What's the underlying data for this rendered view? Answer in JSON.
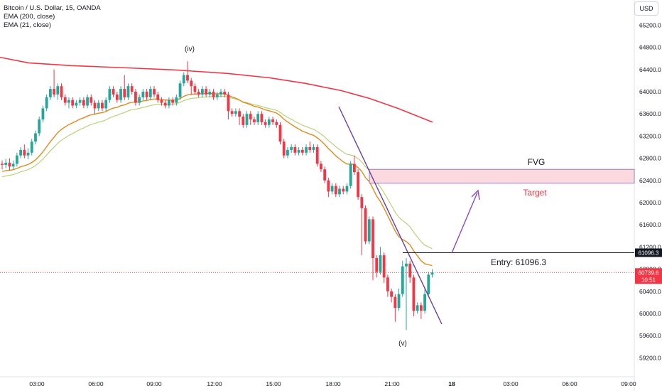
{
  "legend": {
    "symbol": "Bitcoin / U.S. Dollar, 15, OANDA",
    "ema200": "EMA (200, close)",
    "ema21": "EMA (21, close)"
  },
  "currency_button": "USD",
  "colors": {
    "up": "#26a69a",
    "down": "#f23645",
    "ema200": "#f23645",
    "ema21": "#e08a1e",
    "ema_light": "#b9d27a",
    "trendline": "#6a3ea0",
    "fvg_fill": "#fbd9de",
    "fvg_border": "#7d62a8",
    "target_text": "#f23645"
  },
  "annotations": {
    "wave_iv": "(iv)",
    "wave_v": "(v)",
    "fvg": "FVG",
    "target": "Target",
    "entry": "Entry: 61096.3"
  },
  "price_labels": {
    "entry_level": "61096.3",
    "last_price": "60739.6",
    "countdown": "10:51"
  },
  "chart_data": {
    "type": "candlestick",
    "title": "Bitcoin / U.S. Dollar, 15, OANDA",
    "x_ticks": [
      "03:00",
      "06:00",
      "09:00",
      "12:00",
      "15:00",
      "18:00",
      "21:00",
      "18",
      "03:00",
      "06:00",
      "09:00"
    ],
    "y_ticks": [
      59200,
      59600,
      60000,
      60400,
      60800,
      61200,
      61600,
      62000,
      62400,
      62800,
      63200,
      63600,
      64000,
      64400,
      64800,
      65200
    ],
    "ylim": [
      59000,
      65400
    ],
    "entry": 61096.3,
    "last": 60739.6,
    "fvg_zone": [
      62350,
      62600
    ],
    "candles": [
      [
        62700,
        62680,
        62760,
        62600
      ],
      [
        62680,
        62720,
        62790,
        62620
      ],
      [
        62720,
        62650,
        62800,
        62580
      ],
      [
        62650,
        62700,
        62760,
        62600
      ],
      [
        62700,
        62850,
        62900,
        62650
      ],
      [
        62850,
        62950,
        63000,
        62800
      ],
      [
        62950,
        62850,
        63050,
        62800
      ],
      [
        62850,
        62900,
        62980,
        62780
      ],
      [
        62900,
        63100,
        63150,
        62850
      ],
      [
        63100,
        63250,
        63300,
        63050
      ],
      [
        63250,
        63500,
        63550,
        63200
      ],
      [
        63500,
        63700,
        63750,
        63450
      ],
      [
        63700,
        63900,
        63950,
        63650
      ],
      [
        63900,
        64050,
        64100,
        63850
      ],
      [
        64050,
        63950,
        64400,
        63900
      ],
      [
        63950,
        64100,
        64150,
        63850
      ],
      [
        64100,
        63900,
        64150,
        63850
      ],
      [
        63900,
        63800,
        63950,
        63750
      ],
      [
        63800,
        63850,
        63900,
        63700
      ],
      [
        63850,
        63750,
        63900,
        63700
      ],
      [
        63750,
        63800,
        63850,
        63700
      ],
      [
        63800,
        63850,
        63900,
        63750
      ],
      [
        63850,
        63750,
        63900,
        63700
      ],
      [
        63750,
        63900,
        63950,
        63700
      ],
      [
        63900,
        63800,
        63950,
        63750
      ],
      [
        63800,
        63700,
        63850,
        63600
      ],
      [
        63700,
        63800,
        63850,
        63650
      ],
      [
        63800,
        63700,
        63850,
        63650
      ],
      [
        63700,
        63850,
        63900,
        63650
      ],
      [
        63850,
        64050,
        64100,
        63800
      ],
      [
        64050,
        63950,
        64100,
        63900
      ],
      [
        63950,
        63850,
        64000,
        63800
      ],
      [
        63850,
        64050,
        64100,
        63800
      ],
      [
        64050,
        63900,
        64300,
        63850
      ],
      [
        63900,
        64100,
        64150,
        63850
      ],
      [
        64100,
        64000,
        64150,
        63950
      ],
      [
        64000,
        63800,
        64050,
        63750
      ],
      [
        63800,
        63900,
        63950,
        63750
      ],
      [
        63900,
        64000,
        64050,
        63850
      ],
      [
        64000,
        63900,
        64050,
        63850
      ],
      [
        63900,
        64050,
        64100,
        63850
      ],
      [
        64050,
        63950,
        64100,
        63900
      ],
      [
        63950,
        63850,
        64000,
        63800
      ],
      [
        63850,
        63800,
        63900,
        63750
      ],
      [
        63800,
        63750,
        63850,
        63700
      ],
      [
        63750,
        63850,
        63900,
        63700
      ],
      [
        63850,
        63800,
        63900,
        63750
      ],
      [
        63800,
        63900,
        63950,
        63750
      ],
      [
        63900,
        64150,
        64200,
        63850
      ],
      [
        64150,
        64300,
        64350,
        64100
      ],
      [
        64300,
        64200,
        64550,
        64150
      ],
      [
        64200,
        64100,
        64250,
        63950
      ],
      [
        64100,
        64000,
        64150,
        63950
      ],
      [
        64000,
        63950,
        64050,
        63900
      ],
      [
        63950,
        64050,
        64100,
        63900
      ],
      [
        64050,
        63950,
        64100,
        63900
      ],
      [
        63950,
        64000,
        64050,
        63900
      ],
      [
        64000,
        63900,
        64050,
        63850
      ],
      [
        63900,
        63950,
        64000,
        63850
      ],
      [
        63950,
        64000,
        64050,
        63900
      ],
      [
        64000,
        63950,
        64050,
        63900
      ],
      [
        63950,
        63650,
        64000,
        63500
      ],
      [
        63650,
        63600,
        63700,
        63550
      ],
      [
        63600,
        63650,
        63700,
        63550
      ],
      [
        63650,
        63550,
        63700,
        63400
      ],
      [
        63550,
        63400,
        63600,
        63350
      ],
      [
        63400,
        63600,
        63650,
        63350
      ],
      [
        63600,
        63500,
        63650,
        63400
      ],
      [
        63500,
        63450,
        63550,
        63400
      ],
      [
        63450,
        63600,
        63650,
        63400
      ],
      [
        63600,
        63450,
        63650,
        63400
      ],
      [
        63450,
        63400,
        63500,
        63350
      ],
      [
        63400,
        63500,
        63550,
        63350
      ],
      [
        63500,
        63450,
        63550,
        63400
      ],
      [
        63450,
        63400,
        63500,
        63350
      ],
      [
        63400,
        63100,
        63450,
        63050
      ],
      [
        63100,
        62850,
        63150,
        62800
      ],
      [
        62850,
        62950,
        63000,
        62800
      ],
      [
        62950,
        63000,
        63050,
        62900
      ],
      [
        63000,
        62900,
        63050,
        62850
      ],
      [
        62900,
        62950,
        63000,
        62850
      ],
      [
        62950,
        62900,
        63000,
        62850
      ],
      [
        62900,
        63000,
        63050,
        62850
      ],
      [
        63000,
        62950,
        63100,
        62900
      ],
      [
        62950,
        63000,
        63050,
        62900
      ],
      [
        63000,
        62700,
        63050,
        62650
      ],
      [
        62700,
        62600,
        62750,
        62550
      ],
      [
        62600,
        62400,
        62650,
        62350
      ],
      [
        62400,
        62200,
        62450,
        62100
      ],
      [
        62200,
        62300,
        62350,
        62150
      ],
      [
        62300,
        62150,
        62350,
        62100
      ],
      [
        62150,
        62250,
        62300,
        62100
      ],
      [
        62250,
        62200,
        62300,
        62150
      ],
      [
        62200,
        62300,
        62350,
        62150
      ],
      [
        62300,
        62700,
        62750,
        62250
      ],
      [
        62700,
        62550,
        62850,
        62500
      ],
      [
        62550,
        62100,
        62600,
        62050
      ],
      [
        62100,
        61900,
        62150,
        61050
      ],
      [
        61900,
        61300,
        61950,
        61250
      ],
      [
        61300,
        61700,
        61750,
        61250
      ],
      [
        61700,
        61000,
        61750,
        60600
      ],
      [
        61000,
        60750,
        61050,
        60650
      ],
      [
        60750,
        61050,
        61200,
        60700
      ],
      [
        61050,
        60650,
        61100,
        60550
      ],
      [
        60650,
        60400,
        60700,
        60300
      ],
      [
        60400,
        60300,
        60450,
        60200
      ],
      [
        60300,
        60100,
        60350,
        59850
      ],
      [
        60100,
        60350,
        60450,
        60050
      ],
      [
        60350,
        60850,
        60950,
        60300
      ],
      [
        60850,
        60900,
        61000,
        59700
      ],
      [
        60900,
        60650,
        60950,
        60550
      ],
      [
        60650,
        60050,
        60700,
        59950
      ],
      [
        60050,
        60150,
        60200,
        60000
      ],
      [
        60150,
        60050,
        60200,
        59900
      ],
      [
        60050,
        60350,
        60450,
        60000
      ],
      [
        60350,
        60700,
        60750,
        60300
      ],
      [
        60700,
        60740,
        60800,
        60650
      ]
    ]
  }
}
